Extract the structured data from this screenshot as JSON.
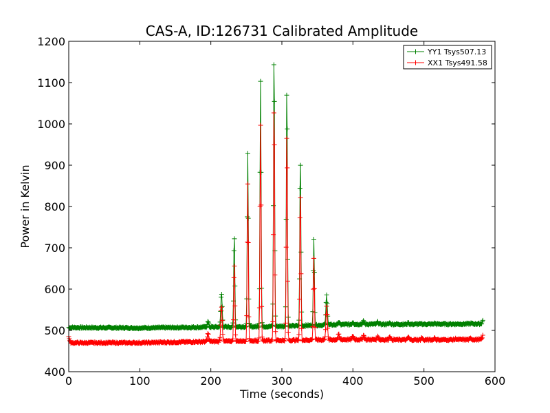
{
  "chart_data": {
    "type": "line",
    "title": "CAS-A, ID:126731 Calibrated Amplitude",
    "xlabel": "Time (seconds)",
    "ylabel": "Power in Kelvin",
    "xlim": [
      0,
      600
    ],
    "ylim": [
      400,
      1200
    ],
    "xticks": [
      0,
      100,
      200,
      300,
      400,
      500,
      600
    ],
    "yticks": [
      400,
      500,
      600,
      700,
      800,
      900,
      1000,
      1100,
      1200
    ],
    "grid": false,
    "legend_position": "top-right",
    "series": [
      {
        "name": "YY1 Tsys507.13",
        "color": "#008000",
        "baseline": [
          [
            0,
            507
          ],
          [
            100,
            506
          ],
          [
            200,
            508
          ],
          [
            300,
            510
          ],
          [
            400,
            515
          ],
          [
            500,
            515
          ],
          [
            583,
            516
          ]
        ],
        "peaks": [
          [
            196,
            521
          ],
          [
            215,
            590
          ],
          [
            233,
            735
          ],
          [
            252,
            930
          ],
          [
            270,
            1105
          ],
          [
            289,
            1178
          ],
          [
            307,
            1100
          ],
          [
            326,
            920
          ],
          [
            345,
            720
          ],
          [
            363,
            585
          ],
          [
            380,
            520
          ],
          [
            400,
            520
          ],
          [
            415,
            522
          ],
          [
            435,
            520
          ],
          [
            452,
            518
          ],
          [
            478,
            518
          ],
          [
            497,
            516
          ],
          [
            515,
            517
          ],
          [
            545,
            515
          ],
          [
            566,
            517
          ],
          [
            583,
            524
          ]
        ]
      },
      {
        "name": "XX1 Tsys491.58",
        "color": "#ff0000",
        "baseline": [
          [
            0,
            470
          ],
          [
            100,
            470
          ],
          [
            200,
            473
          ],
          [
            300,
            476
          ],
          [
            400,
            478
          ],
          [
            500,
            477
          ],
          [
            583,
            478
          ]
        ],
        "peaks": [
          [
            0,
            485
          ],
          [
            196,
            492
          ],
          [
            215,
            560
          ],
          [
            233,
            665
          ],
          [
            252,
            855
          ],
          [
            270,
            995
          ],
          [
            289,
            1058
          ],
          [
            307,
            990
          ],
          [
            326,
            840
          ],
          [
            345,
            675
          ],
          [
            363,
            560
          ],
          [
            380,
            490
          ],
          [
            400,
            487
          ],
          [
            415,
            488
          ],
          [
            435,
            485
          ],
          [
            452,
            486
          ],
          [
            478,
            484
          ],
          [
            497,
            482
          ],
          [
            515,
            482
          ],
          [
            545,
            480
          ],
          [
            566,
            481
          ],
          [
            583,
            487
          ]
        ]
      }
    ]
  }
}
